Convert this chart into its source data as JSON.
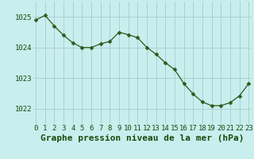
{
  "x": [
    0,
    1,
    2,
    3,
    4,
    5,
    6,
    7,
    8,
    9,
    10,
    11,
    12,
    13,
    14,
    15,
    16,
    17,
    18,
    19,
    20,
    21,
    22,
    23
  ],
  "y": [
    1024.9,
    1025.05,
    1024.7,
    1024.4,
    1024.15,
    1024.0,
    1024.0,
    1024.12,
    1024.2,
    1024.5,
    1024.42,
    1024.32,
    1024.0,
    1023.78,
    1023.5,
    1023.28,
    1022.82,
    1022.48,
    1022.22,
    1022.1,
    1022.1,
    1022.2,
    1022.42,
    1022.82
  ],
  "line_color": "#2d5a1b",
  "marker": "D",
  "marker_size": 2.5,
  "bg_color": "#c8eeee",
  "grid_color": "#aacccc",
  "xlabel": "Graphe pression niveau de la mer (hPa)",
  "xlabel_color": "#1a4a0a",
  "xlabel_fontsize": 8,
  "tick_color": "#1a4a0a",
  "tick_fontsize": 6.5,
  "ytick_labels": [
    "1022",
    "1023",
    "1024",
    "1025"
  ],
  "ytick_values": [
    1022,
    1023,
    1024,
    1025
  ],
  "ylim": [
    1021.5,
    1025.5
  ],
  "xlim": [
    -0.3,
    23.3
  ]
}
